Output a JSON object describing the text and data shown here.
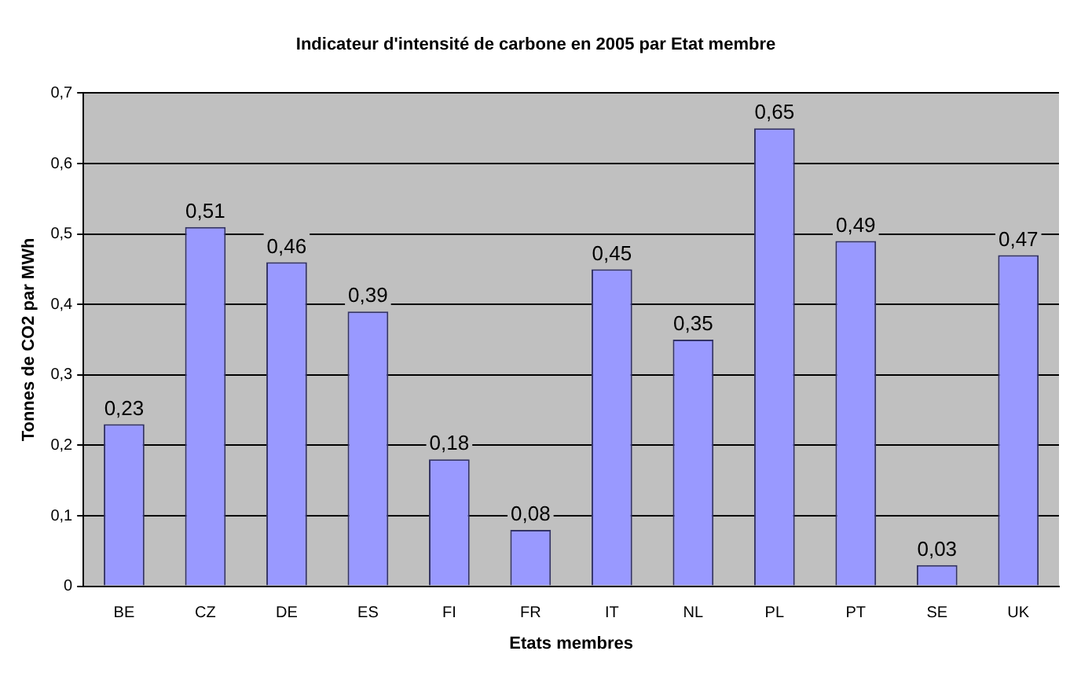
{
  "chart_data": {
    "type": "bar",
    "title": "Indicateur d'intensité de carbone en 2005 par Etat membre",
    "xlabel": "Etats membres",
    "ylabel": "Tonnes de CO2 par MWh",
    "categories": [
      "BE",
      "CZ",
      "DE",
      "ES",
      "FI",
      "FR",
      "IT",
      "NL",
      "PL",
      "PT",
      "SE",
      "UK"
    ],
    "values": [
      0.23,
      0.51,
      0.46,
      0.39,
      0.18,
      0.08,
      0.45,
      0.35,
      0.65,
      0.49,
      0.03,
      0.47
    ],
    "value_labels": [
      "0,23",
      "0,51",
      "0,46",
      "0,39",
      "0,18",
      "0,08",
      "0,45",
      "0,35",
      "0,65",
      "0,49",
      "0,03",
      "0,47"
    ],
    "color": "#9999ff",
    "ylim": [
      0,
      0.7
    ],
    "yticks": [
      {
        "value": 0,
        "label": "0"
      },
      {
        "value": 0.1,
        "label": "0,1"
      },
      {
        "value": 0.2,
        "label": "0,2"
      },
      {
        "value": 0.3,
        "label": "0,3"
      },
      {
        "value": 0.4,
        "label": "0,4"
      },
      {
        "value": 0.5,
        "label": "0,5"
      },
      {
        "value": 0.6,
        "label": "0,6"
      },
      {
        "value": 0.7,
        "label": "0,7"
      }
    ],
    "grid": "y",
    "legend": false
  }
}
